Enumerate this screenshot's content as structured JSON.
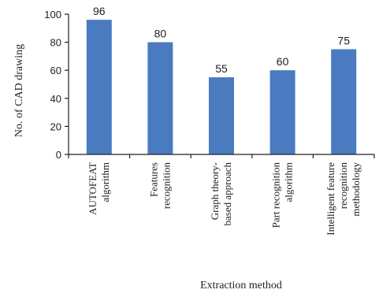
{
  "chart_data": {
    "type": "bar",
    "categories": [
      [
        "AUTOFEAT",
        "algorithm"
      ],
      [
        "Features",
        "recognition"
      ],
      [
        "Graph theory-",
        "based approach"
      ],
      [
        "Part recognition",
        "algorithm"
      ],
      [
        "Intelligent feature",
        "recognition",
        "methodology"
      ]
    ],
    "values": [
      96,
      80,
      55,
      60,
      75
    ],
    "title": "",
    "xlabel": "Extraction method",
    "ylabel": "No. of CAD drawing",
    "ylim": [
      0,
      100
    ],
    "yticks": [
      0,
      20,
      40,
      60,
      80,
      100
    ],
    "grid": false,
    "data_labels": true,
    "colors": {
      "bar": "#4a7bc0",
      "axis": "#222222"
    }
  }
}
